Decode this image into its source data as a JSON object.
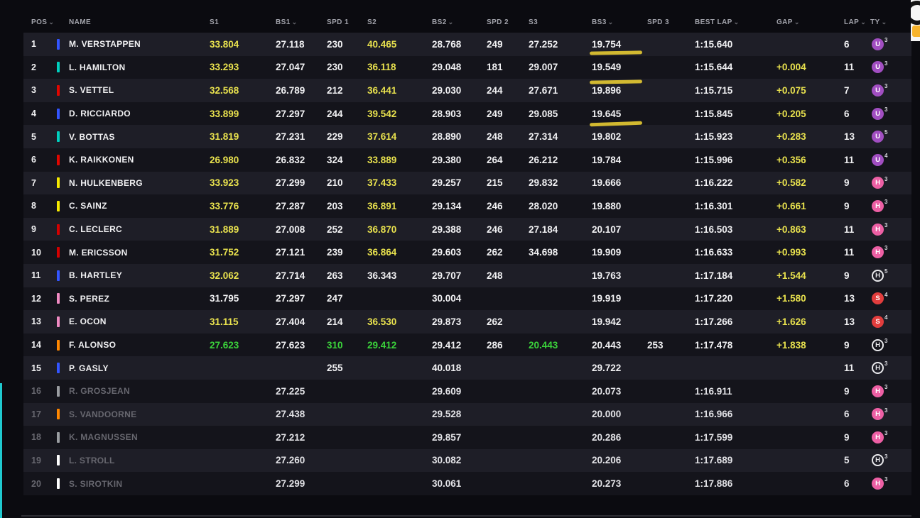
{
  "icons": {
    "sort_chevron": "⌄"
  },
  "colors": {
    "personal_best_yellow": "#e9e24e",
    "session_best_green": "#3bd43b",
    "marker_annotation": "#dcc232",
    "row_odd": "#1e1e27",
    "row_even": "#14141b",
    "left_accent": "#1fc9cf",
    "tyre_ultrasoft_purple": "#a14ec1",
    "tyre_hypersoft_pink": "#ed5fa4",
    "tyre_supersoft_red": "#e23d3d"
  },
  "table": {
    "columns": [
      {
        "key": "pos",
        "label": "POS",
        "sortable": true
      },
      {
        "key": "team",
        "label": "",
        "sortable": false
      },
      {
        "key": "name",
        "label": "NAME",
        "sortable": false
      },
      {
        "key": "s1",
        "label": "S1",
        "sortable": false
      },
      {
        "key": "bs1",
        "label": "BS1",
        "sortable": true
      },
      {
        "key": "spd1",
        "label": "SPD 1",
        "sortable": false
      },
      {
        "key": "s2",
        "label": "S2",
        "sortable": false
      },
      {
        "key": "bs2",
        "label": "BS2",
        "sortable": true
      },
      {
        "key": "spd2",
        "label": "SPD 2",
        "sortable": false
      },
      {
        "key": "s3",
        "label": "S3",
        "sortable": false
      },
      {
        "key": "bs3",
        "label": "BS3",
        "sortable": true
      },
      {
        "key": "spd3",
        "label": "SPD 3",
        "sortable": false
      },
      {
        "key": "bestlap",
        "label": "BEST LAP",
        "sortable": true
      },
      {
        "key": "gap",
        "label": "GAP",
        "sortable": true
      },
      {
        "key": "lap",
        "label": "LAP",
        "sortable": true
      },
      {
        "key": "ty",
        "label": "TY",
        "sortable": true
      }
    ],
    "rows": [
      {
        "pos": "1",
        "team": "#3355ff",
        "name": "M. VERSTAPPEN",
        "dim": false,
        "s1": {
          "v": "33.804",
          "c": "y"
        },
        "bs1": {
          "v": "27.118"
        },
        "spd1": {
          "v": "230"
        },
        "s2": {
          "v": "40.465",
          "c": "y"
        },
        "bs2": {
          "v": "28.768"
        },
        "spd2": {
          "v": "249"
        },
        "s3": {
          "v": "27.252"
        },
        "bs3": {
          "v": "19.754",
          "u": 2,
          "r": -1
        },
        "bestlap": {
          "v": "1:15.640"
        },
        "lap": {
          "v": "6"
        },
        "ty": {
          "letter": "U",
          "sup": "3",
          "color": "#a14ec1",
          "style": "filled"
        }
      },
      {
        "pos": "2",
        "team": "#00cfbe",
        "name": "L. HAMILTON",
        "dim": false,
        "s1": {
          "v": "33.293",
          "c": "y"
        },
        "bs1": {
          "v": "27.047"
        },
        "spd1": {
          "v": "230"
        },
        "s2": {
          "v": "36.118",
          "c": "y"
        },
        "bs2": {
          "v": "29.048"
        },
        "spd2": {
          "v": "181"
        },
        "s3": {
          "v": "29.007"
        },
        "bs3": {
          "v": "19.549",
          "u": -6,
          "r": -1
        },
        "bestlap": {
          "v": "1:15.644"
        },
        "gap": {
          "v": "+0.004",
          "c": "y"
        },
        "lap": {
          "v": "11"
        },
        "ty": {
          "letter": "U",
          "sup": "3",
          "color": "#a14ec1",
          "style": "filled"
        }
      },
      {
        "pos": "3",
        "team": "#e10600",
        "name": "S. VETTEL",
        "dim": false,
        "s1": {
          "v": "32.568",
          "c": "y"
        },
        "bs1": {
          "v": "26.789"
        },
        "spd1": {
          "v": "212"
        },
        "s2": {
          "v": "36.441",
          "c": "y"
        },
        "bs2": {
          "v": "29.030"
        },
        "spd2": {
          "v": "244"
        },
        "s3": {
          "v": "27.671"
        },
        "bs3": {
          "v": "19.896"
        },
        "bestlap": {
          "v": "1:15.715"
        },
        "gap": {
          "v": "+0.075",
          "c": "y"
        },
        "lap": {
          "v": "7"
        },
        "ty": {
          "letter": "U",
          "sup": "3",
          "color": "#a14ec1",
          "style": "filled"
        }
      },
      {
        "pos": "4",
        "team": "#3355ff",
        "name": "D. RICCIARDO",
        "dim": false,
        "s1": {
          "v": "33.899",
          "c": "y"
        },
        "bs1": {
          "v": "27.297"
        },
        "spd1": {
          "v": "244"
        },
        "s2": {
          "v": "39.542",
          "c": "y"
        },
        "bs2": {
          "v": "28.903"
        },
        "spd2": {
          "v": "249"
        },
        "s3": {
          "v": "29.085"
        },
        "bs3": {
          "v": "19.645",
          "u": 0,
          "r": -2
        },
        "bestlap": {
          "v": "1:15.845"
        },
        "gap": {
          "v": "+0.205",
          "c": "y"
        },
        "lap": {
          "v": "6"
        },
        "ty": {
          "letter": "U",
          "sup": "3",
          "color": "#a14ec1",
          "style": "filled"
        }
      },
      {
        "pos": "5",
        "team": "#00cfbe",
        "name": "V. BOTTAS",
        "dim": false,
        "s1": {
          "v": "31.819",
          "c": "y"
        },
        "bs1": {
          "v": "27.231"
        },
        "spd1": {
          "v": "229"
        },
        "s2": {
          "v": "37.614",
          "c": "y"
        },
        "bs2": {
          "v": "28.890"
        },
        "spd2": {
          "v": "248"
        },
        "s3": {
          "v": "27.314"
        },
        "bs3": {
          "v": "19.802"
        },
        "bestlap": {
          "v": "1:15.923"
        },
        "gap": {
          "v": "+0.283",
          "c": "y"
        },
        "lap": {
          "v": "13"
        },
        "ty": {
          "letter": "U",
          "sup": "5",
          "color": "#a14ec1",
          "style": "filled"
        }
      },
      {
        "pos": "6",
        "team": "#e10600",
        "name": "K. RAIKKONEN",
        "dim": false,
        "s1": {
          "v": "26.980",
          "c": "y"
        },
        "bs1": {
          "v": "26.832"
        },
        "spd1": {
          "v": "324"
        },
        "s2": {
          "v": "33.889",
          "c": "y"
        },
        "bs2": {
          "v": "29.380"
        },
        "spd2": {
          "v": "264"
        },
        "s3": {
          "v": "26.212"
        },
        "bs3": {
          "v": "19.784"
        },
        "bestlap": {
          "v": "1:15.996"
        },
        "gap": {
          "v": "+0.356",
          "c": "y"
        },
        "lap": {
          "v": "11"
        },
        "ty": {
          "letter": "U",
          "sup": "4",
          "color": "#a14ec1",
          "style": "filled"
        }
      },
      {
        "pos": "7",
        "team": "#f5e900",
        "name": "N. HULKENBERG",
        "dim": false,
        "s1": {
          "v": "33.923",
          "c": "y"
        },
        "bs1": {
          "v": "27.299"
        },
        "spd1": {
          "v": "210"
        },
        "s2": {
          "v": "37.433",
          "c": "y"
        },
        "bs2": {
          "v": "29.257"
        },
        "spd2": {
          "v": "215"
        },
        "s3": {
          "v": "29.832"
        },
        "bs3": {
          "v": "19.666"
        },
        "bestlap": {
          "v": "1:16.222"
        },
        "gap": {
          "v": "+0.582",
          "c": "y"
        },
        "lap": {
          "v": "9"
        },
        "ty": {
          "letter": "H",
          "sup": "3",
          "color": "#ed5fa4",
          "style": "filled"
        }
      },
      {
        "pos": "8",
        "team": "#f5e900",
        "name": "C. SAINZ",
        "dim": false,
        "s1": {
          "v": "33.776",
          "c": "y"
        },
        "bs1": {
          "v": "27.287"
        },
        "spd1": {
          "v": "203"
        },
        "s2": {
          "v": "36.891",
          "c": "y"
        },
        "bs2": {
          "v": "29.134"
        },
        "spd2": {
          "v": "246"
        },
        "s3": {
          "v": "28.020"
        },
        "bs3": {
          "v": "19.880"
        },
        "bestlap": {
          "v": "1:16.301"
        },
        "gap": {
          "v": "+0.661",
          "c": "y"
        },
        "lap": {
          "v": "9"
        },
        "ty": {
          "letter": "H",
          "sup": "3",
          "color": "#ed5fa4",
          "style": "filled"
        }
      },
      {
        "pos": "9",
        "team": "#d40000",
        "name": "C. LECLERC",
        "dim": false,
        "s1": {
          "v": "31.889",
          "c": "y"
        },
        "bs1": {
          "v": "27.008"
        },
        "spd1": {
          "v": "252"
        },
        "s2": {
          "v": "36.870",
          "c": "y"
        },
        "bs2": {
          "v": "29.388"
        },
        "spd2": {
          "v": "246"
        },
        "s3": {
          "v": "27.184"
        },
        "bs3": {
          "v": "20.107"
        },
        "bestlap": {
          "v": "1:16.503"
        },
        "gap": {
          "v": "+0.863",
          "c": "y"
        },
        "lap": {
          "v": "11"
        },
        "ty": {
          "letter": "H",
          "sup": "3",
          "color": "#ed5fa4",
          "style": "filled"
        }
      },
      {
        "pos": "10",
        "team": "#d40000",
        "name": "M. ERICSSON",
        "dim": false,
        "s1": {
          "v": "31.752",
          "c": "y"
        },
        "bs1": {
          "v": "27.121"
        },
        "spd1": {
          "v": "239"
        },
        "s2": {
          "v": "36.864",
          "c": "y"
        },
        "bs2": {
          "v": "29.603"
        },
        "spd2": {
          "v": "262"
        },
        "s3": {
          "v": "34.698"
        },
        "bs3": {
          "v": "19.909"
        },
        "bestlap": {
          "v": "1:16.633"
        },
        "gap": {
          "v": "+0.993",
          "c": "y"
        },
        "lap": {
          "v": "11"
        },
        "ty": {
          "letter": "H",
          "sup": "3",
          "color": "#ed5fa4",
          "style": "filled"
        }
      },
      {
        "pos": "11",
        "team": "#3355ff",
        "name": "B. HARTLEY",
        "dim": false,
        "s1": {
          "v": "32.062",
          "c": "y"
        },
        "bs1": {
          "v": "27.714"
        },
        "spd1": {
          "v": "263"
        },
        "s2": {
          "v": "36.343"
        },
        "bs2": {
          "v": "29.707"
        },
        "spd2": {
          "v": "248"
        },
        "bs3": {
          "v": "19.763"
        },
        "bestlap": {
          "v": "1:17.184"
        },
        "gap": {
          "v": "+1.544",
          "c": "y"
        },
        "lap": {
          "v": "9"
        },
        "ty": {
          "letter": "H",
          "sup": "5",
          "color": "#ed5fa4",
          "style": "outline"
        }
      },
      {
        "pos": "12",
        "team": "#f08ac2",
        "name": "S. PEREZ",
        "dim": false,
        "s1": {
          "v": "31.795"
        },
        "bs1": {
          "v": "27.297"
        },
        "spd1": {
          "v": "247"
        },
        "bs2": {
          "v": "30.004"
        },
        "bs3": {
          "v": "19.919"
        },
        "bestlap": {
          "v": "1:17.220"
        },
        "gap": {
          "v": "+1.580",
          "c": "y"
        },
        "lap": {
          "v": "13"
        },
        "ty": {
          "letter": "S",
          "sup": "4",
          "color": "#e23d3d",
          "style": "filled"
        }
      },
      {
        "pos": "13",
        "team": "#f08ac2",
        "name": "E. OCON",
        "dim": false,
        "s1": {
          "v": "31.115",
          "c": "y"
        },
        "bs1": {
          "v": "27.404"
        },
        "spd1": {
          "v": "214"
        },
        "s2": {
          "v": "36.530",
          "c": "y"
        },
        "bs2": {
          "v": "29.873"
        },
        "spd2": {
          "v": "262"
        },
        "bs3": {
          "v": "19.942"
        },
        "bestlap": {
          "v": "1:17.266"
        },
        "gap": {
          "v": "+1.626",
          "c": "y"
        },
        "lap": {
          "v": "13"
        },
        "ty": {
          "letter": "S",
          "sup": "4",
          "color": "#e23d3d",
          "style": "filled"
        }
      },
      {
        "pos": "14",
        "team": "#ff8700",
        "name": "F. ALONSO",
        "dim": false,
        "s1": {
          "v": "27.623",
          "c": "g"
        },
        "bs1": {
          "v": "27.623"
        },
        "spd1": {
          "v": "310",
          "c": "g"
        },
        "s2": {
          "v": "29.412",
          "c": "g"
        },
        "bs2": {
          "v": "29.412"
        },
        "spd2": {
          "v": "286"
        },
        "s3": {
          "v": "20.443",
          "c": "g"
        },
        "bs3": {
          "v": "20.443"
        },
        "spd3": {
          "v": "253"
        },
        "bestlap": {
          "v": "1:17.478"
        },
        "gap": {
          "v": "+1.838",
          "c": "y"
        },
        "lap": {
          "v": "9"
        },
        "ty": {
          "letter": "H",
          "sup": "3",
          "color": "#ed5fa4",
          "style": "outline"
        }
      },
      {
        "pos": "15",
        "team": "#3355ff",
        "name": "P. GASLY",
        "dim": false,
        "spd1": {
          "v": "255"
        },
        "bs2": {
          "v": "40.018"
        },
        "bs3": {
          "v": "29.722"
        },
        "lap": {
          "v": "11"
        },
        "ty": {
          "letter": "H",
          "sup": "3",
          "color": "#ed5fa4",
          "style": "outline"
        }
      },
      {
        "pos": "16",
        "team": "#9a9da1",
        "name": "R. GROSJEAN",
        "dim": true,
        "bs1": {
          "v": "27.225"
        },
        "bs2": {
          "v": "29.609"
        },
        "bs3": {
          "v": "20.073"
        },
        "bestlap": {
          "v": "1:16.911"
        },
        "lap": {
          "v": "9"
        },
        "ty": {
          "letter": "H",
          "sup": "3",
          "color": "#ed5fa4",
          "style": "filled"
        }
      },
      {
        "pos": "17",
        "team": "#ff8700",
        "name": "S. VANDOORNE",
        "dim": true,
        "bs1": {
          "v": "27.438"
        },
        "bs2": {
          "v": "29.528"
        },
        "bs3": {
          "v": "20.000"
        },
        "bestlap": {
          "v": "1:16.966"
        },
        "lap": {
          "v": "6"
        },
        "ty": {
          "letter": "H",
          "sup": "3",
          "color": "#ed5fa4",
          "style": "filled"
        }
      },
      {
        "pos": "18",
        "team": "#9a9da1",
        "name": "K. MAGNUSSEN",
        "dim": true,
        "bs1": {
          "v": "27.212"
        },
        "bs2": {
          "v": "29.857"
        },
        "bs3": {
          "v": "20.286"
        },
        "bestlap": {
          "v": "1:17.599"
        },
        "lap": {
          "v": "9"
        },
        "ty": {
          "letter": "H",
          "sup": "3",
          "color": "#ed5fa4",
          "style": "filled"
        }
      },
      {
        "pos": "19",
        "team": "#ffffff",
        "name": "L. STROLL",
        "dim": true,
        "bs1": {
          "v": "27.260"
        },
        "bs2": {
          "v": "30.082"
        },
        "bs3": {
          "v": "20.206"
        },
        "bestlap": {
          "v": "1:17.689"
        },
        "lap": {
          "v": "5"
        },
        "ty": {
          "letter": "H",
          "sup": "3",
          "color": "#ed5fa4",
          "style": "outline"
        }
      },
      {
        "pos": "20",
        "team": "#ffffff",
        "name": "S. SIROTKIN",
        "dim": true,
        "bs1": {
          "v": "27.299"
        },
        "bs2": {
          "v": "30.061"
        },
        "bs3": {
          "v": "20.273"
        },
        "bestlap": {
          "v": "1:17.886"
        },
        "lap": {
          "v": "6"
        },
        "ty": {
          "letter": "H",
          "sup": "3",
          "color": "#ed5fa4",
          "style": "filled"
        }
      }
    ]
  }
}
